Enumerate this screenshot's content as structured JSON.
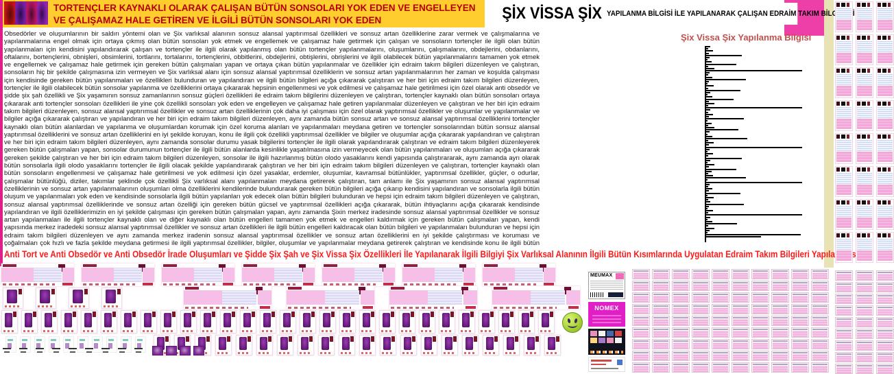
{
  "header": {
    "left_title": "TORTENÇLER KAYNAKLI OLARAK ÇALIŞAN BÜTÜN SONSOLARI YOK EDEN VE ENGELLEYEN VE ÇALIŞAMAZ HALE GETİREN VE İLGİLİ BÜTÜN SONSOLARI YOK EDEN",
    "right_title_main": "ŞİX VİSSA ŞİX",
    "right_title_rest": "YAPILANMA BİLGİSİ İLE YAPILANARAK ÇALIŞAN EDRAİM TAKIM BİLGİLERİ",
    "colors": {
      "band_yellow": "#ffcd2e",
      "title_red": "#b40000",
      "pink_corner": "#ee3ea8",
      "left_strip": "#df1e8c"
    }
  },
  "body": {
    "paragraph": "Obsedörler ve oluşumlarının bir saldırı yöntemi olan ve Şix varlıksal alanının sonsuz alansal yaptırımsal özellikleri ve sonsuz artan özelliklerine zarar vermek ve çalışmalarına ve yapılanmalarına engel olmak için ortaya çıkmış olan bütün sonsoları yok etmek ve engellemek ve çalışamaz hale getirmek için çalışan ve sonsoların tortençler ile ilgili olan bütün yapılanmaları için kendisini yapılandırarak çalışan ve tortençler ile ilgili olarak yapılanmış olan bütün tortençler yapılanmalarını, oluşumlarını, çalışmalarını, obdejlerini, obdanlarını, oftalarını, bortençlerini, obnişleri, obsimlerini, tortlarını, tortalarını, tortençlerini, obbitlerini, obdejlerini, obtişlerini, obrişlerini ve ilgili olabilecek bütün yapılanmalarını tamamen yok etmek ve engellemek ve çalışamaz hale getirmek için gereken bütün çalışmaları yapan ve ortaya çıkan bütün yapılanmalar ve özellikler için edraim takım bilgileri düzenleyen ve çalıştıran, sonsoların hiç bir şekilde çalışmasına izin vermeyen ve Şix varlıksal alanı için sonsuz alansal yaptırımsal özelliklerin ve sonsuz artan yapılanmalarının her zaman ve koşulda çalışması için kendisinde gereken bütün yapılanmaları ve özellikleri bulunduran ve yapılandıran ve ilgili bütün bilgileri açığa çıkararak çalıştıran ve her biri için edraim takım bilgileri düzenleyen, tortençler ile ilgili olabilecek bütün sonsolar yapılanma ve özelliklerini ortaya çıkararak hepsinin engellenmesi ve yok edilmesi ve çalışamaz hale getirilmesi için özel olarak anti obsedör ve şidde şix şah özellikli ve Şix yaşamının sonsuz zamanlarının sonsuz güçleri özellikleri ile edraim takım bilgilerini düzenleyen ve çalıştıran, tortençler kaynaklı olan bütün sonsoları ortaya çıkararak anti tortençler sonsoları özellikleri ile yine çok özellikli sonsoları yok eden ve engelleyen ve çalışamaz hale getiren yapılanmalar düzenleyen ve çalıştıran ve her biri için edraim takım bilgileri düzenleyen, sonsuz alansal yaptırımsal özellikler ve sonsuz artan özelliklerinin çok daha iyi çalışması için özel olarak yaptırımsal özellikler ve oluşumlar ve yapılanmalar ve bilgiler açığa çıkararak çalıştıran ve yapılandıran ve her biri için edraim takım bilgileri düzenleyen, aynı zamanda bütün sonsuz artan ve sonsuz alansal yaptırımsal özelliklerini tortençler kaynaklı olan bütün alanlardan ve yapılanma ve oluşumlardan korumak için özel koruma alanları ve yapılanmaları meydana getiren ve tortençler sonsolarından bütün sonsuz alansal yaptırımsal özelliklerini ve sonsuz artan özelliklerini en iyi şekilde koruyan, konu ile ilgili çok özellikli yaptırımsal özellikler ve bilgiler ve oluşumlar açığa çıkararak yapılandıran ve çalıştıran ve her biri için edraim takım bilgileri düzenleyen, aynı zamanda sonsolar durumu yasak bilgilerini tortençler ile ilgili olarak yapılandırarak çalıştıran ve edraim takım bilgileri düzenleyerek gereken bütün çalışmaları yapan, sonsolar durumunun tortençler ile ilgili bütün alanlarda kesinlikle yaşatılmasına izin vermeyecek olan bütün yapılanmaları ve oluşumları açığa çıkararak gereken şekilde çalıştıran ve her biri için edraim takım bilgileri düzenleyen, sonsolar ile ilgili hazırlanmış bütün olodo yasaklarını kendi yapısında çalıştırararak, aynı zamanda ayrı olarak bütün sonsolarla ilgili olodo yasaklarını tortençler ile ilgili olacak şekilde yapılandırarak çalıştıran ve her biri için edraim takım bilgileri düzenleyen ve çalıştıran, tortençler kaynaklı olan bütün sonsoların engellenmesi ve çalışamaz hale getirilmesi ve yok edilmesi için özel yasaklar, erdemler, oluşumlar, kavramsal bütünlükler, yaptırımsal özellikler, güçler, o odurlar, çalışmalar bütünlüğü, diziler, takımlar şeklinde çok özellikli Şix varlıksal alanı yapılanmaları meydana getirerek çalıştıran, tam anlamı ile Şix yaşamının sonsuz alansal yaptırımsal özelliklerinin ve sonsuz artan yapılanmalarının oluşumları olma özelliklerini kendilerinde bulundurarak gereken bütün bilgileri açığa çıkarıp kendisini yapılandıran ve sonsolarla ilgili bütün oluşum ve yapılanmaları yok eden ve kendisinde sonsolarla ilgili bütün yapılanları yok edecek olan bütün bilgileri bulunduran ve hepsi için edraim takım bilgileri düzenleyen ve çalıştıran, sonsuz alansal yaptırımsal özelliklerinde ve sonsuz artan özelliği için gereken bütün gücsel ve yaptırımsal özellikleri açığa çıkararak, bütün ihtiyaçlarını açığa çıkararak kendisinde yapılandıran ve ilgili özelliklerimizin en iyi şekilde çalışması için gereken bütün çalışmaları yapan, aynı zamanda Şixin merkez iradesinde sonsuz alansal yaptırımsal özellikler ve sonsuz artan yapılanmaları ile ilgili tortençler kaynaklı olan ve diğer kaynaklı olan bütün engelleri tamamen yok etmek ve engelleri kaldırmak için gereken bütün çalışmaları yapan, kendi yapısında merkez iradedeki sonsuz alansal yaptırımsal özellikler ve sonsuz artan özellikleri ile ilgili bütün engelleri kaldıracak olan bütün bilgileri ve yapılanmaları bulunduran ve hepsi için edraim takım bilgileri düzenleyen ve aynı zamanda merkez iradenin sonsuz alansal yaptırımsal özellikler ve sonsuz artan özelliklerini en iyi şekilde çalıştırması ve koruması ve çoğalmaları çok hızlı ve fazla şekilde meydana getirmesi ile ilgili yaptırımsal özellikler, bilgiler, oluşumlar ve yapılanmalar meydana getirerek çalıştıran ve kendisinde konu ile ilgili bütün bilgileri ve yapılanmaları bulunduran, tortençler sonsolarının yok edilmesi ve engellenmesi ve çalışamaz hale gelmesi ile ilgili özel bilgi kaynağı yapılanması meydana getirerek olabilecek bütün bilgileri açığa çıkaran ve bilgi kaynağı özelliği ile bütün bilgileri ve oluşumları kendi yapısında bulunduran özel bilgi kaynağı gücü ile tortençler sonsolarını tamamen etkisiz hale getirecek olan çalışmaları yapmasını sağlayan ve gereken bütün bilgileri ve oluşum ve yapılanmarı açığa çıkararak çalışan ve bütün yapılanmalarını Şix Vissa Şix bilgisel yapılanması ile sağlayan edraim takım bilgileri gereken şekilde yapılanır."
  },
  "chart_data": {
    "type": "bar",
    "orientation": "horizontal",
    "title": "Şix Vissa Şix Yapılanma Bilgisi",
    "title_color": "#c0504d",
    "bar_color": "#000000",
    "xlabel": "",
    "ylabel": "",
    "categories_labeled": false,
    "values": [
      6,
      3,
      10,
      4,
      52,
      5,
      2,
      8,
      44,
      3,
      12,
      140,
      5,
      3,
      9,
      58,
      4,
      2,
      11,
      3,
      50,
      6,
      2,
      9,
      40,
      4,
      12,
      3,
      140,
      6,
      3,
      10,
      4,
      55,
      2,
      8,
      3,
      12,
      47,
      5,
      2,
      9,
      60,
      3,
      11,
      4,
      140,
      5,
      2,
      10,
      3,
      52,
      6,
      2,
      12,
      4,
      44,
      8,
      3,
      10,
      58,
      2,
      140,
      5,
      3,
      9,
      4,
      50,
      2,
      11,
      3,
      6,
      55,
      4,
      2,
      10,
      3,
      140,
      6,
      2,
      9,
      45,
      3,
      12,
      5,
      2,
      138,
      80
    ]
  },
  "bottom_banner": {
    "text": "Anti Tort ve Anti Obsedör ve Anti Obsedör İrade Oluşumları ve Şidde Şix Şah ve Şix Vissa Şix Özellikleri İle Yapılanarak İlgili Bilgiyi Şix Varlıksal Alanının İlgili Bütün Kısımlarında Uygulatan Edraim Takım Bilgileri Yapılanması",
    "color": "#ff1a1a"
  },
  "collage": {
    "meumax_label": "MEUMAX",
    "nomex_label": "NOMEX"
  },
  "icons": {
    "pop_art": "pop-art-figure-panels",
    "smiley": "green-smiley-face",
    "thumbnails": "document-thumbnail"
  }
}
